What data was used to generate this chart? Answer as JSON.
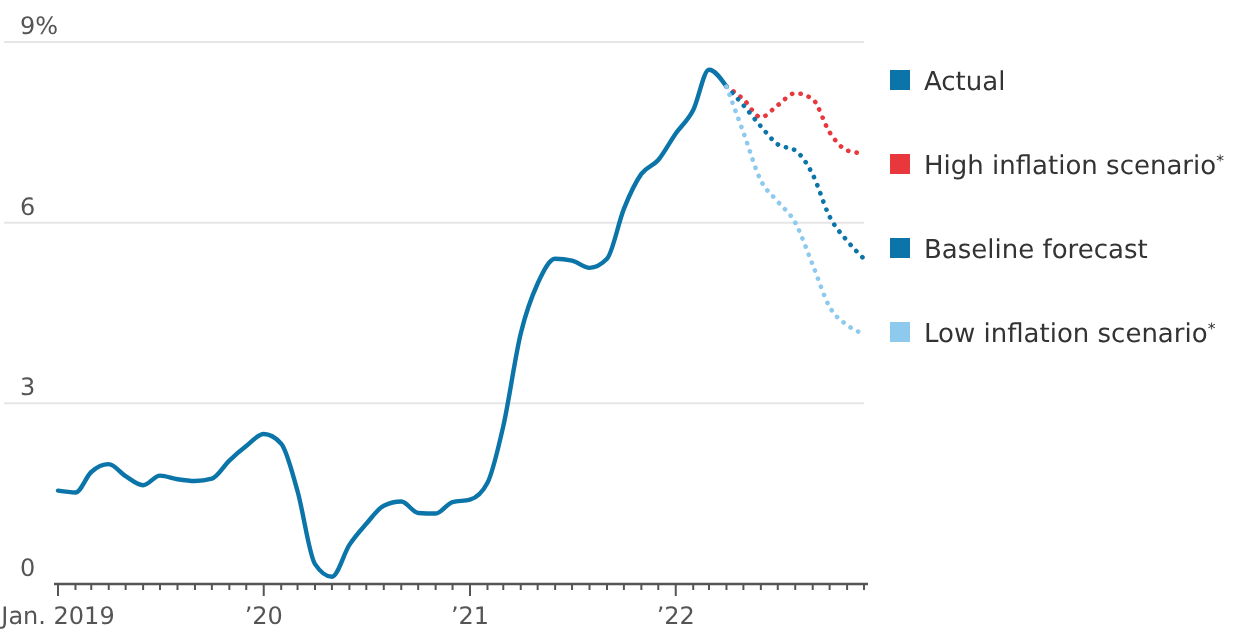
{
  "chart_data": {
    "type": "line",
    "xlim": [
      "2019-01",
      "2022-12"
    ],
    "xticks": [
      {
        "value": "2019-01",
        "label": "Jan. 2019"
      },
      {
        "value": "2019-02",
        "label": null
      },
      {
        "value": "2019-03",
        "label": null
      },
      {
        "value": "2019-04",
        "label": null
      },
      {
        "value": "2019-05",
        "label": null
      },
      {
        "value": "2019-06",
        "label": null
      },
      {
        "value": "2019-07",
        "label": null
      },
      {
        "value": "2019-08",
        "label": null
      },
      {
        "value": "2019-09",
        "label": null
      },
      {
        "value": "2019-10",
        "label": null
      },
      {
        "value": "2019-11",
        "label": null
      },
      {
        "value": "2019-12",
        "label": null
      },
      {
        "value": "2020-01",
        "label": "’20"
      },
      {
        "value": "2020-02",
        "label": null
      },
      {
        "value": "2020-03",
        "label": null
      },
      {
        "value": "2020-04",
        "label": null
      },
      {
        "value": "2020-05",
        "label": null
      },
      {
        "value": "2020-06",
        "label": null
      },
      {
        "value": "2020-07",
        "label": null
      },
      {
        "value": "2020-08",
        "label": null
      },
      {
        "value": "2020-09",
        "label": null
      },
      {
        "value": "2020-10",
        "label": null
      },
      {
        "value": "2020-11",
        "label": null
      },
      {
        "value": "2020-12",
        "label": null
      },
      {
        "value": "2021-01",
        "label": "’21"
      },
      {
        "value": "2021-02",
        "label": null
      },
      {
        "value": "2021-03",
        "label": null
      },
      {
        "value": "2021-04",
        "label": null
      },
      {
        "value": "2021-05",
        "label": null
      },
      {
        "value": "2021-06",
        "label": null
      },
      {
        "value": "2021-07",
        "label": null
      },
      {
        "value": "2021-08",
        "label": null
      },
      {
        "value": "2021-09",
        "label": null
      },
      {
        "value": "2021-10",
        "label": null
      },
      {
        "value": "2021-11",
        "label": null
      },
      {
        "value": "2021-12",
        "label": null
      },
      {
        "value": "2022-01",
        "label": "’22"
      },
      {
        "value": "2022-02",
        "label": null
      },
      {
        "value": "2022-03",
        "label": null
      },
      {
        "value": "2022-04",
        "label": null
      },
      {
        "value": "2022-05",
        "label": null
      },
      {
        "value": "2022-06",
        "label": null
      },
      {
        "value": "2022-07",
        "label": null
      },
      {
        "value": "2022-08",
        "label": null
      },
      {
        "value": "2022-09",
        "label": null
      },
      {
        "value": "2022-10",
        "label": null
      },
      {
        "value": "2022-11",
        "label": null
      },
      {
        "value": "2022-12",
        "label": null
      }
    ],
    "ylim": [
      0,
      9
    ],
    "yticks": [
      0,
      3,
      6,
      {
        "value": 9,
        "label": "9%"
      }
    ],
    "grid": "y",
    "legend": "right",
    "series": [
      {
        "name": "Actual",
        "color": "#0b74a8",
        "line_style": "solid",
        "x": [
          "2019-01",
          "2019-02",
          "2019-03",
          "2019-04",
          "2019-05",
          "2019-06",
          "2019-07",
          "2019-08",
          "2019-09",
          "2019-10",
          "2019-11",
          "2019-12",
          "2020-01",
          "2020-02",
          "2020-03",
          "2020-04",
          "2020-05",
          "2020-06",
          "2020-07",
          "2020-08",
          "2020-09",
          "2020-10",
          "2020-11",
          "2020-12",
          "2021-01",
          "2021-02",
          "2021-03",
          "2021-04",
          "2021-05",
          "2021-06",
          "2021-07",
          "2021-08",
          "2021-09",
          "2021-10",
          "2021-11",
          "2021-12",
          "2022-01",
          "2022-02",
          "2022-03",
          "2022-04"
        ],
        "values": [
          1.55,
          1.52,
          1.86,
          1.99,
          1.79,
          1.64,
          1.8,
          1.74,
          1.71,
          1.75,
          2.05,
          2.29,
          2.49,
          2.33,
          1.54,
          0.33,
          0.12,
          0.65,
          1.0,
          1.3,
          1.37,
          1.18,
          1.17,
          1.36,
          1.4,
          1.68,
          2.62,
          4.16,
          4.99,
          5.4,
          5.37,
          5.25,
          5.4,
          6.23,
          6.81,
          7.04,
          7.48,
          7.87,
          8.54,
          8.26
        ]
      },
      {
        "name": "High inflation scenario$^{*}$",
        "color": "#e8383d",
        "line_style": "dotted",
        "x": [
          "2022-04",
          "2022-05",
          "2022-06",
          "2022-07",
          "2022-08",
          "2022-09",
          "2022-10",
          "2022-11",
          "2022-12"
        ],
        "values": [
          8.26,
          8.05,
          7.75,
          7.95,
          8.15,
          8.05,
          7.5,
          7.2,
          7.15
        ]
      },
      {
        "name": "Baseline forecast",
        "color": "#0b74a8",
        "line_style": "dotted",
        "x": [
          "2022-04",
          "2022-05",
          "2022-06",
          "2022-07",
          "2022-08",
          "2022-09",
          "2022-10",
          "2022-11",
          "2022-12"
        ],
        "values": [
          8.26,
          7.95,
          7.6,
          7.3,
          7.2,
          6.8,
          6.1,
          5.7,
          5.4
        ]
      },
      {
        "name": "Low inflation scenario$^{*}$",
        "color": "#8ec9ee",
        "line_style": "dotted",
        "x": [
          "2022-04",
          "2022-05",
          "2022-06",
          "2022-07",
          "2022-08",
          "2022-09",
          "2022-10",
          "2022-11",
          "2022-12"
        ],
        "values": [
          8.26,
          7.5,
          6.7,
          6.35,
          6.0,
          5.3,
          4.6,
          4.3,
          4.15
        ]
      }
    ]
  }
}
